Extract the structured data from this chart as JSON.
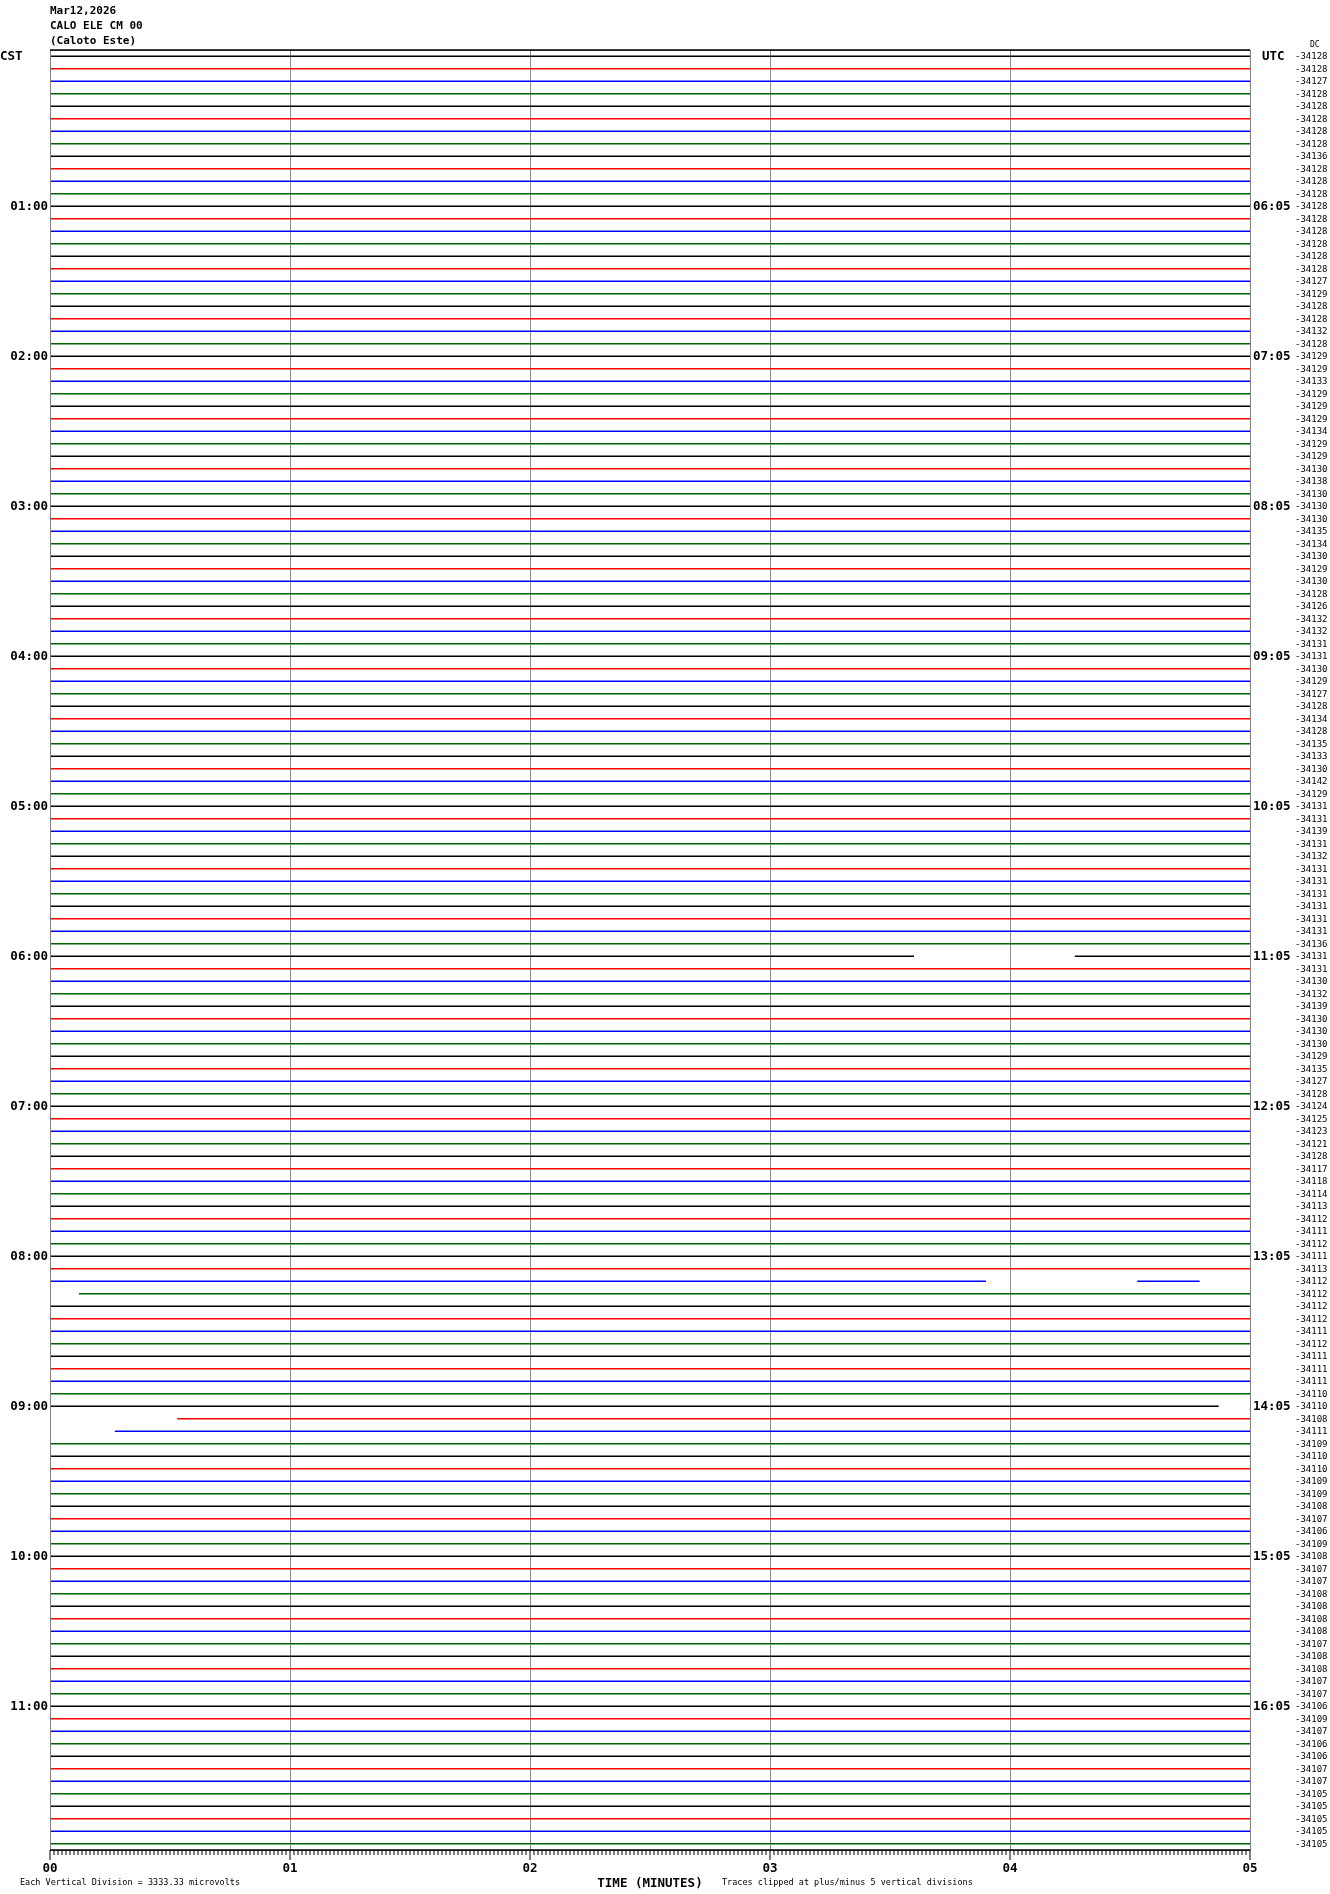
{
  "chart_data": {
    "type": "line",
    "title": "Mar12,2026",
    "subtitle": "CALO ELE CM 00",
    "ylabel": "CST",
    "y2label": "UTC",
    "xlabel": "TIME (MINUTES)",
    "annotations": [
      "(Caloto Este)",
      "DC",
      "Each Vertical Division = 3333.33 microvolts",
      "Traces clipped at plus/minus 5 vertical divisions",
      "-34128",
      "-34128",
      "-34127",
      "-34128",
      "-34128",
      "-34128",
      "-34128",
      "-34128",
      "-34136",
      "-34128",
      "-34128",
      "-34128",
      "-34128",
      "-34128",
      "-34128",
      "-34128",
      "-34128",
      "-34128",
      "-34127",
      "-34129",
      "-34128",
      "-34128",
      "-34132",
      "-34128",
      "-34129",
      "-34129",
      "-34133",
      "-34129",
      "-34129",
      "-34129",
      "-34134",
      "-34129",
      "-34129",
      "-34130",
      "-34138",
      "-34130",
      "-34130",
      "-34130",
      "-34135",
      "-34134",
      "-34130",
      "-34129",
      "-34130",
      "-34128",
      "-34126",
      "-34132",
      "-34132",
      "-34131",
      "-34131",
      "-34130",
      "-34129",
      "-34127",
      "-34128",
      "-34134",
      "-34128",
      "-34135",
      "-34133",
      "-34130",
      "-34142",
      "-34129",
      "-34131",
      "-34131",
      "-34139",
      "-34131",
      "-34132",
      "-34131",
      "-34131",
      "-34131",
      "-34131",
      "-34131",
      "-34131",
      "-34136",
      "-34131",
      "-34131",
      "-34130",
      "-34132",
      "-34139",
      "-34130",
      "-34130",
      "-34130",
      "-34129",
      "-34135",
      "-34127",
      "-34128",
      "-34124",
      "-34125",
      "-34123",
      "-34121",
      "-34128",
      "-34117",
      "-34118",
      "-34114",
      "-34113",
      "-34112",
      "-34111",
      "-34112",
      "-34111",
      "-34113",
      "-34112",
      "-34112",
      "-34112",
      "-34112",
      "-34111",
      "-34112",
      "-34111",
      "-34111",
      "-34111",
      "-34110",
      "-34110",
      "-34108",
      "-34111",
      "-34109",
      "-34110",
      "-34110",
      "-34109",
      "-34109",
      "-34108",
      "-34107",
      "-34106",
      "-34109",
      "-34108",
      "-34107",
      "-34107",
      "-34108",
      "-34108",
      "-34108",
      "-34108",
      "-34107",
      "-34108",
      "-34108",
      "-34107",
      "-34107",
      "-34106",
      "-34109",
      "-34107",
      "-34106",
      "-34106",
      "-34107",
      "-34107",
      "-34105",
      "-34105",
      "-34105",
      "-34105",
      "-34105"
    ],
    "x": [
      0,
      5
    ],
    "xlim": [
      0,
      5
    ],
    "xticks": [
      {
        "value": 0,
        "label": "00"
      },
      {
        "value": 0.0167,
        "label": null
      },
      {
        "value": 0.0333,
        "label": null
      },
      {
        "value": 0.05,
        "label": null
      },
      {
        "value": 0.0667,
        "label": null
      },
      {
        "value": 0.0833,
        "label": null
      },
      {
        "value": 0.1,
        "label": null
      },
      {
        "value": 0.1167,
        "label": null
      },
      {
        "value": 0.1333,
        "label": null
      },
      {
        "value": 0.15,
        "label": null
      },
      {
        "value": 0.1667,
        "label": null
      },
      {
        "value": 0.1833,
        "label": null
      },
      {
        "value": 0.2,
        "label": null
      },
      {
        "value": 0.2167,
        "label": null
      },
      {
        "value": 0.2333,
        "label": null
      },
      {
        "value": 0.25,
        "label": null
      },
      {
        "value": 0.2667,
        "label": null
      },
      {
        "value": 0.2833,
        "label": null
      },
      {
        "value": 0.3,
        "label": null
      },
      {
        "value": 0.3167,
        "label": null
      },
      {
        "value": 0.3333,
        "label": null
      },
      {
        "value": 0.35,
        "label": null
      },
      {
        "value": 0.3667,
        "label": null
      },
      {
        "value": 0.3833,
        "label": null
      },
      {
        "value": 0.4,
        "label": null
      },
      {
        "value": 0.4167,
        "label": null
      },
      {
        "value": 0.4333,
        "label": null
      },
      {
        "value": 0.45,
        "label": null
      },
      {
        "value": 0.4667,
        "label": null
      },
      {
        "value": 0.4833,
        "label": null
      },
      {
        "value": 0.5,
        "label": null
      },
      {
        "value": 0.5167,
        "label": null
      },
      {
        "value": 0.5333,
        "label": null
      },
      {
        "value": 0.55,
        "label": null
      },
      {
        "value": 0.5667,
        "label": null
      },
      {
        "value": 0.5833,
        "label": null
      },
      {
        "value": 0.6,
        "label": null
      },
      {
        "value": 0.6167,
        "label": null
      },
      {
        "value": 0.6333,
        "label": null
      },
      {
        "value": 0.65,
        "label": null
      },
      {
        "value": 0.6667,
        "label": null
      },
      {
        "value": 0.6833,
        "label": null
      },
      {
        "value": 0.7,
        "label": null
      },
      {
        "value": 0.7167,
        "label": null
      },
      {
        "value": 0.7333,
        "label": null
      },
      {
        "value": 0.75,
        "label": null
      },
      {
        "value": 0.7667,
        "label": null
      },
      {
        "value": 0.7833,
        "label": null
      },
      {
        "value": 0.8,
        "label": null
      },
      {
        "value": 0.8167,
        "label": null
      },
      {
        "value": 0.8333,
        "label": null
      },
      {
        "value": 0.85,
        "label": null
      },
      {
        "value": 0.8667,
        "label": null
      },
      {
        "value": 0.8833,
        "label": null
      },
      {
        "value": 0.9,
        "label": null
      },
      {
        "value": 0.9167,
        "label": null
      },
      {
        "value": 0.9333,
        "label": null
      },
      {
        "value": 0.95,
        "label": null
      },
      {
        "value": 0.9667,
        "label": null
      },
      {
        "value": 0.9833,
        "label": null
      },
      {
        "value": 1,
        "label": "01"
      },
      {
        "value": 1.0167,
        "label": null
      },
      {
        "value": 1.0333,
        "label": null
      },
      {
        "value": 1.05,
        "label": null
      },
      {
        "value": 1.0667,
        "label": null
      },
      {
        "value": 1.0833,
        "label": null
      },
      {
        "value": 1.1,
        "label": null
      },
      {
        "value": 1.1167,
        "label": null
      },
      {
        "value": 1.1333,
        "label": null
      },
      {
        "value": 1.15,
        "label": null
      },
      {
        "value": 1.1667,
        "label": null
      },
      {
        "value": 1.1833,
        "label": null
      },
      {
        "value": 1.2,
        "label": null
      },
      {
        "value": 1.2167,
        "label": null
      },
      {
        "value": 1.2333,
        "label": null
      },
      {
        "value": 1.25,
        "label": null
      },
      {
        "value": 1.2667,
        "label": null
      },
      {
        "value": 1.2833,
        "label": null
      },
      {
        "value": 1.3,
        "label": null
      },
      {
        "value": 1.3167,
        "label": null
      },
      {
        "value": 1.3333,
        "label": null
      },
      {
        "value": 1.35,
        "label": null
      },
      {
        "value": 1.3667,
        "label": null
      },
      {
        "value": 1.3833,
        "label": null
      },
      {
        "value": 1.4,
        "label": null
      },
      {
        "value": 1.4167,
        "label": null
      },
      {
        "value": 1.4333,
        "label": null
      },
      {
        "value": 1.45,
        "label": null
      },
      {
        "value": 1.4667,
        "label": null
      },
      {
        "value": 1.4833,
        "label": null
      },
      {
        "value": 1.5,
        "label": null
      },
      {
        "value": 1.5167,
        "label": null
      },
      {
        "value": 1.5333,
        "label": null
      },
      {
        "value": 1.55,
        "label": null
      },
      {
        "value": 1.5667,
        "label": null
      },
      {
        "value": 1.5833,
        "label": null
      },
      {
        "value": 1.6,
        "label": null
      },
      {
        "value": 1.6167,
        "label": null
      },
      {
        "value": 1.6333,
        "label": null
      },
      {
        "value": 1.65,
        "label": null
      },
      {
        "value": 1.6667,
        "label": null
      },
      {
        "value": 1.6833,
        "label": null
      },
      {
        "value": 1.7,
        "label": null
      },
      {
        "value": 1.7167,
        "label": null
      },
      {
        "value": 1.7333,
        "label": null
      },
      {
        "value": 1.75,
        "label": null
      },
      {
        "value": 1.7667,
        "label": null
      },
      {
        "value": 1.7833,
        "label": null
      },
      {
        "value": 1.8,
        "label": null
      },
      {
        "value": 1.8167,
        "label": null
      },
      {
        "value": 1.8333,
        "label": null
      },
      {
        "value": 1.85,
        "label": null
      },
      {
        "value": 1.8667,
        "label": null
      },
      {
        "value": 1.8833,
        "label": null
      },
      {
        "value": 1.9,
        "label": null
      },
      {
        "value": 1.9167,
        "label": null
      },
      {
        "value": 1.9333,
        "label": null
      },
      {
        "value": 1.95,
        "label": null
      },
      {
        "value": 1.9667,
        "label": null
      },
      {
        "value": 1.9833,
        "label": null
      },
      {
        "value": 2,
        "label": "02"
      },
      {
        "value": 2.0167,
        "label": null
      },
      {
        "value": 2.0333,
        "label": null
      },
      {
        "value": 2.05,
        "label": null
      },
      {
        "value": 2.0667,
        "label": null
      },
      {
        "value": 2.0833,
        "label": null
      },
      {
        "value": 2.1,
        "label": null
      },
      {
        "value": 2.1167,
        "label": null
      },
      {
        "value": 2.1333,
        "label": null
      },
      {
        "value": 2.15,
        "label": null
      },
      {
        "value": 2.1667,
        "label": null
      },
      {
        "value": 2.1833,
        "label": null
      },
      {
        "value": 2.2,
        "label": null
      },
      {
        "value": 2.2167,
        "label": null
      },
      {
        "value": 2.2333,
        "label": null
      },
      {
        "value": 2.25,
        "label": null
      },
      {
        "value": 2.2667,
        "label": null
      },
      {
        "value": 2.2833,
        "label": null
      },
      {
        "value": 2.3,
        "label": null
      },
      {
        "value": 2.3167,
        "label": null
      },
      {
        "value": 2.3333,
        "label": null
      },
      {
        "value": 2.35,
        "label": null
      },
      {
        "value": 2.3667,
        "label": null
      },
      {
        "value": 2.3833,
        "label": null
      },
      {
        "value": 2.4,
        "label": null
      },
      {
        "value": 2.4167,
        "label": null
      },
      {
        "value": 2.4333,
        "label": null
      },
      {
        "value": 2.45,
        "label": null
      },
      {
        "value": 2.4667,
        "label": null
      },
      {
        "value": 2.4833,
        "label": null
      },
      {
        "value": 2.5,
        "label": null
      },
      {
        "value": 2.5167,
        "label": null
      },
      {
        "value": 2.5333,
        "label": null
      },
      {
        "value": 2.55,
        "label": null
      },
      {
        "value": 2.5667,
        "label": null
      },
      {
        "value": 2.5833,
        "label": null
      },
      {
        "value": 2.6,
        "label": null
      },
      {
        "value": 2.6167,
        "label": null
      },
      {
        "value": 2.6333,
        "label": null
      },
      {
        "value": 2.65,
        "label": null
      },
      {
        "value": 2.6667,
        "label": null
      },
      {
        "value": 2.6833,
        "label": null
      },
      {
        "value": 2.7,
        "label": null
      },
      {
        "value": 2.7167,
        "label": null
      },
      {
        "value": 2.7333,
        "label": null
      },
      {
        "value": 2.75,
        "label": null
      },
      {
        "value": 2.7667,
        "label": null
      },
      {
        "value": 2.7833,
        "label": null
      },
      {
        "value": 2.8,
        "label": null
      },
      {
        "value": 2.8167,
        "label": null
      },
      {
        "value": 2.8333,
        "label": null
      },
      {
        "value": 2.85,
        "label": null
      },
      {
        "value": 2.8667,
        "label": null
      },
      {
        "value": 2.8833,
        "label": null
      },
      {
        "value": 2.9,
        "label": null
      },
      {
        "value": 2.9167,
        "label": null
      },
      {
        "value": 2.9333,
        "label": null
      },
      {
        "value": 2.95,
        "label": null
      },
      {
        "value": 2.9667,
        "label": null
      },
      {
        "value": 2.9833,
        "label": null
      },
      {
        "value": 3,
        "label": "03"
      },
      {
        "value": 3.0167,
        "label": null
      },
      {
        "value": 3.0333,
        "label": null
      },
      {
        "value": 3.05,
        "label": null
      },
      {
        "value": 3.0667,
        "label": null
      },
      {
        "value": 3.0833,
        "label": null
      },
      {
        "value": 3.1,
        "label": null
      },
      {
        "value": 3.1167,
        "label": null
      },
      {
        "value": 3.1333,
        "label": null
      },
      {
        "value": 3.15,
        "label": null
      },
      {
        "value": 3.1667,
        "label": null
      },
      {
        "value": 3.1833,
        "label": null
      },
      {
        "value": 3.2,
        "label": null
      },
      {
        "value": 3.2167,
        "label": null
      },
      {
        "value": 3.2333,
        "label": null
      },
      {
        "value": 3.25,
        "label": null
      },
      {
        "value": 3.2667,
        "label": null
      },
      {
        "value": 3.2833,
        "label": null
      },
      {
        "value": 3.3,
        "label": null
      },
      {
        "value": 3.3167,
        "label": null
      },
      {
        "value": 3.3333,
        "label": null
      },
      {
        "value": 3.35,
        "label": null
      },
      {
        "value": 3.3667,
        "label": null
      },
      {
        "value": 3.3833,
        "label": null
      },
      {
        "value": 3.4,
        "label": null
      },
      {
        "value": 3.4167,
        "label": null
      },
      {
        "value": 3.4333,
        "label": null
      },
      {
        "value": 3.45,
        "label": null
      },
      {
        "value": 3.4667,
        "label": null
      },
      {
        "value": 3.4833,
        "label": null
      },
      {
        "value": 3.5,
        "label": null
      },
      {
        "value": 3.5167,
        "label": null
      },
      {
        "value": 3.5333,
        "label": null
      },
      {
        "value": 3.55,
        "label": null
      },
      {
        "value": 3.5667,
        "label": null
      },
      {
        "value": 3.5833,
        "label": null
      },
      {
        "value": 3.6,
        "label": null
      },
      {
        "value": 3.6167,
        "label": null
      },
      {
        "value": 3.6333,
        "label": null
      },
      {
        "value": 3.65,
        "label": null
      },
      {
        "value": 3.6667,
        "label": null
      },
      {
        "value": 3.6833,
        "label": null
      },
      {
        "value": 3.7,
        "label": null
      },
      {
        "value": 3.7167,
        "label": null
      },
      {
        "value": 3.7333,
        "label": null
      },
      {
        "value": 3.75,
        "label": null
      },
      {
        "value": 3.7667,
        "label": null
      },
      {
        "value": 3.7833,
        "label": null
      },
      {
        "value": 3.8,
        "label": null
      },
      {
        "value": 3.8167,
        "label": null
      },
      {
        "value": 3.8333,
        "label": null
      },
      {
        "value": 3.85,
        "label": null
      },
      {
        "value": 3.8667,
        "label": null
      },
      {
        "value": 3.8833,
        "label": null
      },
      {
        "value": 3.9,
        "label": null
      },
      {
        "value": 3.9167,
        "label": null
      },
      {
        "value": 3.9333,
        "label": null
      },
      {
        "value": 3.95,
        "label": null
      },
      {
        "value": 3.9667,
        "label": null
      },
      {
        "value": 3.9833,
        "label": null
      },
      {
        "value": 4,
        "label": "04"
      },
      {
        "value": 4.0167,
        "label": null
      },
      {
        "value": 4.0333,
        "label": null
      },
      {
        "value": 4.05,
        "label": null
      },
      {
        "value": 4.0667,
        "label": null
      },
      {
        "value": 4.0833,
        "label": null
      },
      {
        "value": 4.1,
        "label": null
      },
      {
        "value": 4.1167,
        "label": null
      },
      {
        "value": 4.1333,
        "label": null
      },
      {
        "value": 4.15,
        "label": null
      },
      {
        "value": 4.1667,
        "label": null
      },
      {
        "value": 4.1833,
        "label": null
      },
      {
        "value": 4.2,
        "label": null
      },
      {
        "value": 4.2167,
        "label": null
      },
      {
        "value": 4.2333,
        "label": null
      },
      {
        "value": 4.25,
        "label": null
      },
      {
        "value": 4.2667,
        "label": null
      },
      {
        "value": 4.2833,
        "label": null
      },
      {
        "value": 4.3,
        "label": null
      },
      {
        "value": 4.3167,
        "label": null
      },
      {
        "value": 4.3333,
        "label": null
      },
      {
        "value": 4.35,
        "label": null
      },
      {
        "value": 4.3667,
        "label": null
      },
      {
        "value": 4.3833,
        "label": null
      },
      {
        "value": 4.4,
        "label": null
      },
      {
        "value": 4.4167,
        "label": null
      },
      {
        "value": 4.4333,
        "label": null
      },
      {
        "value": 4.45,
        "label": null
      },
      {
        "value": 4.4667,
        "label": null
      },
      {
        "value": 4.4833,
        "label": null
      },
      {
        "value": 4.5,
        "label": null
      },
      {
        "value": 4.5167,
        "label": null
      },
      {
        "value": 4.5333,
        "label": null
      },
      {
        "value": 4.55,
        "label": null
      },
      {
        "value": 4.5667,
        "label": null
      },
      {
        "value": 4.5833,
        "label": null
      },
      {
        "value": 4.6,
        "label": null
      },
      {
        "value": 4.6167,
        "label": null
      },
      {
        "value": 4.6333,
        "label": null
      },
      {
        "value": 4.65,
        "label": null
      },
      {
        "value": 4.6667,
        "label": null
      },
      {
        "value": 4.6833,
        "label": null
      },
      {
        "value": 4.7,
        "label": null
      },
      {
        "value": 4.7167,
        "label": null
      },
      {
        "value": 4.7333,
        "label": null
      },
      {
        "value": 4.75,
        "label": null
      },
      {
        "value": 4.7667,
        "label": null
      },
      {
        "value": 4.7833,
        "label": null
      },
      {
        "value": 4.8,
        "label": null
      },
      {
        "value": 4.8167,
        "label": null
      },
      {
        "value": 4.8333,
        "label": null
      },
      {
        "value": 4.85,
        "label": null
      },
      {
        "value": 4.8667,
        "label": null
      },
      {
        "value": 4.8833,
        "label": null
      },
      {
        "value": 4.9,
        "label": null
      },
      {
        "value": 4.9167,
        "label": null
      },
      {
        "value": 4.9333,
        "label": null
      },
      {
        "value": 4.95,
        "label": null
      },
      {
        "value": 4.9667,
        "label": null
      },
      {
        "value": 4.9833,
        "label": null
      },
      {
        "value": 5,
        "label": "05"
      }
    ],
    "ylim": [
      717.5,
      -2.5
    ],
    "yticks": [
      {
        "value": 60,
        "label": "01:00"
      },
      {
        "value": 120,
        "label": "02:00"
      },
      {
        "value": 180,
        "label": "03:00"
      },
      {
        "value": 240,
        "label": "04:00"
      },
      {
        "value": 300,
        "label": "05:00"
      },
      {
        "value": 360,
        "label": "06:00"
      },
      {
        "value": 420,
        "label": "07:00"
      },
      {
        "value": 480,
        "label": "08:00"
      },
      {
        "value": 540,
        "label": "09:00"
      },
      {
        "value": 600,
        "label": "10:00"
      },
      {
        "value": 660,
        "label": "11:00"
      }
    ],
    "y2lim": [
      1022.5,
      302.5
    ],
    "y2ticks": [
      {
        "value": 365,
        "label": "06:05"
      },
      {
        "value": 425,
        "label": "07:05"
      },
      {
        "value": 485,
        "label": "08:05"
      },
      {
        "value": 545,
        "label": "09:05"
      },
      {
        "value": 605,
        "label": "10:05"
      },
      {
        "value": 665,
        "label": "11:05"
      },
      {
        "value": 725,
        "label": "12:05"
      },
      {
        "value": 785,
        "label": "13:05"
      },
      {
        "value": 845,
        "label": "14:05"
      },
      {
        "value": 905,
        "label": "15:05"
      },
      {
        "value": 965,
        "label": "16:05"
      }
    ],
    "grid": "x",
    "series": [
      {
        "color": "#000000",
        "values": [
          0,
          0
        ]
      },
      {
        "color": "#ff0000",
        "values": [
          5,
          5
        ]
      },
      {
        "color": "#0000ff",
        "values": [
          10,
          10
        ]
      },
      {
        "color": "#006400",
        "values": [
          15,
          15
        ]
      },
      {
        "color": "#000000",
        "values": [
          20,
          20
        ]
      },
      {
        "color": "#ff0000",
        "values": [
          25,
          25
        ]
      },
      {
        "color": "#0000ff",
        "values": [
          30,
          30
        ]
      },
      {
        "color": "#006400",
        "values": [
          35,
          35
        ]
      },
      {
        "color": "#000000",
        "values": [
          40,
          40
        ]
      },
      {
        "color": "#ff0000",
        "values": [
          45,
          45
        ]
      },
      {
        "color": "#0000ff",
        "values": [
          50,
          50
        ]
      },
      {
        "color": "#006400",
        "values": [
          55,
          55
        ]
      },
      {
        "color": "#000000",
        "values": [
          60,
          60
        ]
      },
      {
        "color": "#ff0000",
        "values": [
          65,
          65
        ]
      },
      {
        "color": "#0000ff",
        "values": [
          70,
          70
        ]
      },
      {
        "color": "#006400",
        "values": [
          75,
          75
        ]
      },
      {
        "color": "#000000",
        "values": [
          80,
          80
        ]
      },
      {
        "color": "#ff0000",
        "values": [
          85,
          85
        ]
      },
      {
        "color": "#0000ff",
        "values": [
          90,
          90
        ]
      },
      {
        "color": "#006400",
        "values": [
          95,
          95
        ]
      },
      {
        "color": "#000000",
        "values": [
          100,
          100
        ]
      },
      {
        "color": "#ff0000",
        "values": [
          105,
          105
        ]
      },
      {
        "color": "#0000ff",
        "values": [
          110,
          110
        ]
      },
      {
        "color": "#006400",
        "values": [
          115,
          115
        ]
      },
      {
        "color": "#000000",
        "values": [
          120,
          120
        ]
      },
      {
        "color": "#ff0000",
        "values": [
          125,
          125
        ]
      },
      {
        "color": "#0000ff",
        "values": [
          130,
          130
        ]
      },
      {
        "color": "#006400",
        "values": [
          135,
          135
        ]
      },
      {
        "color": "#000000",
        "values": [
          140,
          140
        ]
      },
      {
        "color": "#ff0000",
        "values": [
          145,
          145
        ]
      },
      {
        "color": "#0000ff",
        "values": [
          150,
          150
        ]
      },
      {
        "color": "#006400",
        "values": [
          155,
          155
        ]
      },
      {
        "color": "#000000",
        "values": [
          160,
          160
        ]
      },
      {
        "color": "#ff0000",
        "values": [
          165,
          165
        ]
      },
      {
        "color": "#0000ff",
        "values": [
          170,
          170
        ]
      },
      {
        "color": "#006400",
        "values": [
          175,
          175
        ]
      },
      {
        "color": "#000000",
        "values": [
          180,
          180
        ]
      },
      {
        "color": "#ff0000",
        "values": [
          185,
          185
        ]
      },
      {
        "color": "#0000ff",
        "values": [
          190,
          190
        ]
      },
      {
        "color": "#006400",
        "values": [
          195,
          195
        ]
      },
      {
        "color": "#000000",
        "values": [
          200,
          200
        ]
      },
      {
        "color": "#ff0000",
        "values": [
          205,
          205
        ]
      },
      {
        "color": "#0000ff",
        "values": [
          210,
          210
        ]
      },
      {
        "color": "#006400",
        "values": [
          215,
          215
        ]
      },
      {
        "color": "#000000",
        "values": [
          220,
          220
        ]
      },
      {
        "color": "#ff0000",
        "values": [
          225,
          225
        ]
      },
      {
        "color": "#0000ff",
        "values": [
          230,
          230
        ]
      },
      {
        "color": "#006400",
        "values": [
          235,
          235
        ]
      },
      {
        "color": "#000000",
        "values": [
          240,
          240
        ]
      },
      {
        "color": "#ff0000",
        "values": [
          245,
          245
        ]
      },
      {
        "color": "#0000ff",
        "values": [
          250,
          250
        ]
      },
      {
        "color": "#006400",
        "values": [
          255,
          255
        ]
      },
      {
        "color": "#000000",
        "values": [
          260,
          260
        ]
      },
      {
        "color": "#ff0000",
        "values": [
          265,
          265
        ]
      },
      {
        "color": "#0000ff",
        "values": [
          270,
          270
        ]
      },
      {
        "color": "#006400",
        "values": [
          275,
          275
        ]
      },
      {
        "color": "#000000",
        "values": [
          280,
          280
        ]
      },
      {
        "color": "#ff0000",
        "values": [
          285,
          285
        ]
      },
      {
        "color": "#0000ff",
        "values": [
          290,
          290
        ]
      },
      {
        "color": "#006400",
        "values": [
          295,
          295
        ]
      },
      {
        "color": "#000000",
        "values": [
          300,
          300
        ]
      },
      {
        "color": "#ff0000",
        "values": [
          305,
          305
        ]
      },
      {
        "color": "#0000ff",
        "values": [
          310,
          310
        ]
      },
      {
        "color": "#006400",
        "values": [
          315,
          315
        ]
      },
      {
        "color": "#000000",
        "values": [
          320,
          320
        ]
      },
      {
        "color": "#ff0000",
        "values": [
          325,
          325
        ]
      },
      {
        "color": "#0000ff",
        "values": [
          330,
          330
        ]
      },
      {
        "color": "#006400",
        "values": [
          335,
          335
        ]
      },
      {
        "color": "#000000",
        "values": [
          340,
          340
        ]
      },
      {
        "color": "#ff0000",
        "values": [
          345,
          345
        ]
      },
      {
        "color": "#0000ff",
        "values": [
          350,
          350
        ]
      },
      {
        "color": "#006400",
        "values": [
          355,
          355
        ]
      },
      {
        "color": "#000000",
        "x": [
          0,
          3.6,
          3.9,
          4.27,
          5
        ],
        "values": [
          360,
          360,
          null,
          360,
          360
        ]
      },
      {
        "color": "#ff0000",
        "values": [
          365,
          365
        ]
      },
      {
        "color": "#0000ff",
        "values": [
          370,
          370
        ]
      },
      {
        "color": "#006400",
        "values": [
          375,
          375
        ]
      },
      {
        "color": "#000000",
        "values": [
          380,
          380
        ]
      },
      {
        "color": "#ff0000",
        "values": [
          385,
          385
        ]
      },
      {
        "color": "#0000ff",
        "values": [
          390,
          390
        ]
      },
      {
        "color": "#006400",
        "values": [
          395,
          395
        ]
      },
      {
        "color": "#000000",
        "values": [
          400,
          400
        ]
      },
      {
        "color": "#ff0000",
        "values": [
          405,
          405
        ]
      },
      {
        "color": "#0000ff",
        "values": [
          410,
          410
        ]
      },
      {
        "color": "#006400",
        "values": [
          415,
          415
        ]
      },
      {
        "color": "#000000",
        "values": [
          420,
          420
        ]
      },
      {
        "color": "#ff0000",
        "values": [
          425,
          425
        ]
      },
      {
        "color": "#0000ff",
        "values": [
          430,
          430
        ]
      },
      {
        "color": "#006400",
        "values": [
          435,
          435
        ]
      },
      {
        "color": "#000000",
        "values": [
          440,
          440
        ]
      },
      {
        "color": "#ff0000",
        "values": [
          445,
          445
        ]
      },
      {
        "color": "#0000ff",
        "values": [
          450,
          450
        ]
      },
      {
        "color": "#006400",
        "values": [
          455,
          455
        ]
      },
      {
        "color": "#000000",
        "values": [
          460,
          460
        ]
      },
      {
        "color": "#ff0000",
        "values": [
          465,
          465
        ]
      },
      {
        "color": "#0000ff",
        "values": [
          470,
          470
        ]
      },
      {
        "color": "#006400",
        "values": [
          475,
          475
        ]
      },
      {
        "color": "#000000",
        "values": [
          480,
          480
        ]
      },
      {
        "color": "#ff0000",
        "values": [
          485,
          485
        ]
      },
      {
        "color": "#0000ff",
        "x": [
          0,
          3.9,
          4.2,
          4.53,
          4.79
        ],
        "values": [
          490,
          490,
          null,
          490,
          490
        ]
      },
      {
        "color": "#006400",
        "x": [
          0.12,
          5
        ],
        "values": [
          495,
          495
        ]
      },
      {
        "color": "#000000",
        "values": [
          500,
          500
        ]
      },
      {
        "color": "#ff0000",
        "values": [
          505,
          505
        ]
      },
      {
        "color": "#0000ff",
        "values": [
          510,
          510
        ]
      },
      {
        "color": "#006400",
        "values": [
          515,
          515
        ]
      },
      {
        "color": "#000000",
        "values": [
          520,
          520
        ]
      },
      {
        "color": "#ff0000",
        "values": [
          525,
          525
        ]
      },
      {
        "color": "#0000ff",
        "values": [
          530,
          530
        ]
      },
      {
        "color": "#006400",
        "values": [
          535,
          535
        ]
      },
      {
        "color": "#000000",
        "x": [
          0,
          4.87
        ],
        "values": [
          540,
          540
        ]
      },
      {
        "color": "#ff0000",
        "x": [
          0.53,
          5
        ],
        "values": [
          545,
          545
        ]
      },
      {
        "color": "#0000ff",
        "x": [
          0.27,
          5
        ],
        "values": [
          550,
          550
        ]
      },
      {
        "color": "#006400",
        "values": [
          555,
          555
        ]
      },
      {
        "color": "#000000",
        "values": [
          560,
          560
        ]
      },
      {
        "color": "#ff0000",
        "values": [
          565,
          565
        ]
      },
      {
        "color": "#0000ff",
        "values": [
          570,
          570
        ]
      },
      {
        "color": "#006400",
        "values": [
          575,
          575
        ]
      },
      {
        "color": "#000000",
        "values": [
          580,
          580
        ]
      },
      {
        "color": "#ff0000",
        "values": [
          585,
          585
        ]
      },
      {
        "color": "#0000ff",
        "values": [
          590,
          590
        ]
      },
      {
        "color": "#006400",
        "values": [
          595,
          595
        ]
      },
      {
        "color": "#000000",
        "values": [
          600,
          600
        ]
      },
      {
        "color": "#ff0000",
        "values": [
          605,
          605
        ]
      },
      {
        "color": "#0000ff",
        "values": [
          610,
          610
        ]
      },
      {
        "color": "#006400",
        "values": [
          615,
          615
        ]
      },
      {
        "color": "#000000",
        "values": [
          620,
          620
        ]
      },
      {
        "color": "#ff0000",
        "values": [
          625,
          625
        ]
      },
      {
        "color": "#0000ff",
        "values": [
          630,
          630
        ]
      },
      {
        "color": "#006400",
        "values": [
          635,
          635
        ]
      },
      {
        "color": "#000000",
        "values": [
          640,
          640
        ]
      },
      {
        "color": "#ff0000",
        "values": [
          645,
          645
        ]
      },
      {
        "color": "#0000ff",
        "values": [
          650,
          650
        ]
      },
      {
        "color": "#006400",
        "values": [
          655,
          655
        ]
      },
      {
        "color": "#000000",
        "values": [
          660,
          660
        ]
      },
      {
        "color": "#ff0000",
        "values": [
          665,
          665
        ]
      },
      {
        "color": "#0000ff",
        "values": [
          670,
          670
        ]
      },
      {
        "color": "#006400",
        "values": [
          675,
          675
        ]
      },
      {
        "color": "#000000",
        "values": [
          680,
          680
        ]
      },
      {
        "color": "#ff0000",
        "values": [
          685,
          685
        ]
      },
      {
        "color": "#0000ff",
        "values": [
          690,
          690
        ]
      },
      {
        "color": "#006400",
        "values": [
          695,
          695
        ]
      },
      {
        "color": "#000000",
        "values": [
          700,
          700
        ]
      },
      {
        "color": "#ff0000",
        "values": [
          705,
          705
        ]
      },
      {
        "color": "#0000ff",
        "values": [
          710,
          710
        ]
      },
      {
        "color": "#006400",
        "values": [
          715,
          715
        ]
      }
    ]
  }
}
